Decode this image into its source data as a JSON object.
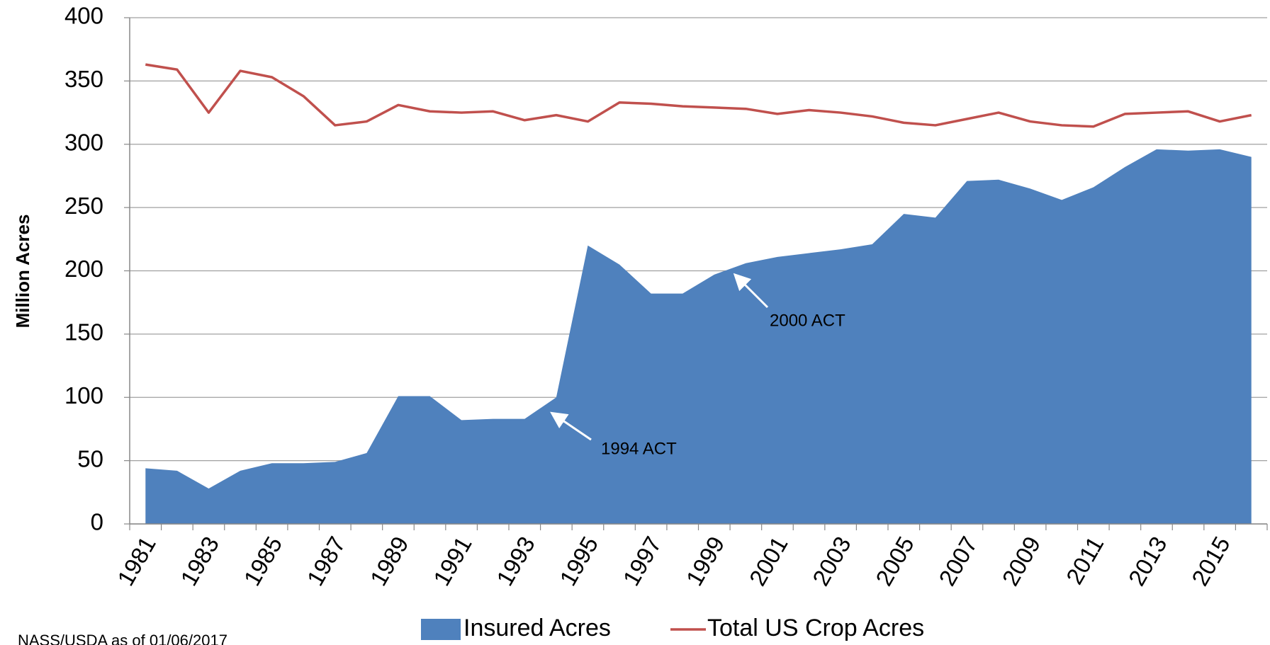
{
  "chart_data": {
    "type": "area",
    "y_label": "Million Acres",
    "categories": [
      "1981",
      null,
      "1983",
      null,
      "1985",
      null,
      "1987",
      null,
      "1989",
      null,
      "1991",
      null,
      "1993",
      null,
      "1995",
      null,
      "1997",
      null,
      "1999",
      null,
      "2001",
      null,
      "2003",
      null,
      "2005",
      null,
      "2007",
      null,
      "2009",
      null,
      "2011",
      null,
      "2013",
      null,
      "2015",
      null
    ],
    "series": [
      {
        "name": "Insured Acres",
        "type": "area",
        "color": "#4f81bd",
        "values": [
          44,
          42,
          28,
          42,
          48,
          48,
          49,
          56,
          101,
          101,
          82,
          83,
          83,
          100,
          220,
          205,
          182,
          182,
          197,
          206,
          211,
          214,
          217,
          221,
          245,
          242,
          271,
          272,
          265,
          256,
          266,
          282,
          296,
          295,
          296,
          290
        ]
      },
      {
        "name": "Total US Crop Acres",
        "type": "line",
        "color": "#c0504d",
        "values": [
          363,
          359,
          325,
          358,
          353,
          338,
          315,
          318,
          331,
          326,
          325,
          326,
          319,
          323,
          318,
          333,
          332,
          330,
          329,
          328,
          324,
          327,
          325,
          322,
          317,
          315,
          320,
          325,
          318,
          315,
          314,
          324,
          325,
          326,
          318,
          323
        ]
      }
    ],
    "ylim": [
      0,
      400
    ],
    "yticks": [
      0,
      50,
      100,
      150,
      200,
      250,
      300,
      350,
      400
    ],
    "grid": true,
    "legend": "bottom",
    "annotations": [
      "1994 ACT",
      "2000 ACT"
    ],
    "footnote": "NASS/USDA as of 01/06/2017"
  }
}
